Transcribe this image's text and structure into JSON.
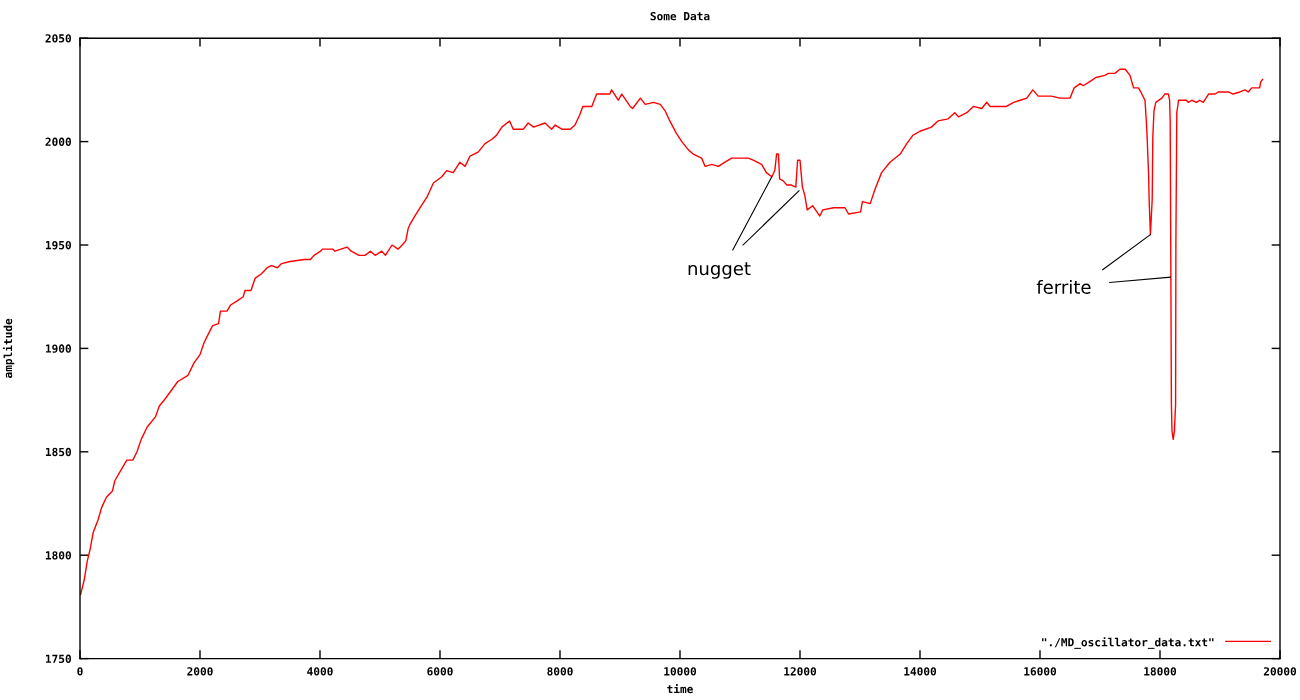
{
  "chart_data": {
    "type": "line",
    "title": "Some Data",
    "xlabel": "time",
    "ylabel": "amplitude",
    "xlim": [
      0,
      20000
    ],
    "xticks": [
      0,
      2000,
      4000,
      6000,
      8000,
      10000,
      12000,
      14000,
      16000,
      18000,
      20000
    ],
    "ylim": [
      1750,
      2050
    ],
    "yticks": [
      1750,
      1800,
      1850,
      1900,
      1950,
      2000,
      2050
    ],
    "legend": "bottom right",
    "annotations": [
      {
        "text": "nugget",
        "x": 11530,
        "y": 1983
      },
      {
        "text": "ferrite",
        "x": 17840,
        "y": 1955
      }
    ],
    "series": [
      {
        "name": "\"./MD_oscillator_data.txt\"",
        "color": "#ff0000",
        "x": [
          10,
          70,
          120,
          170,
          220,
          300,
          360,
          440,
          540,
          580,
          680,
          780,
          880,
          950,
          1020,
          1120,
          1260,
          1320,
          1430,
          1530,
          1630,
          1800,
          1900,
          2000,
          2070,
          2140,
          2210,
          2310,
          2340,
          2450,
          2510,
          2620,
          2720,
          2750,
          2850,
          2920,
          3020,
          3120,
          3190,
          3290,
          3360,
          3500,
          3740,
          3840,
          3900,
          4010,
          4040,
          4210,
          4250,
          4350,
          4450,
          4520,
          4650,
          4750,
          4840,
          4920,
          5030,
          5090,
          5200,
          5300,
          5370,
          5430,
          5470,
          5500,
          5580,
          5690,
          5780,
          5890,
          6030,
          6110,
          6220,
          6330,
          6420,
          6500,
          6640,
          6750,
          6860,
          6940,
          7030,
          7160,
          7220,
          7390,
          7470,
          7560,
          7750,
          7860,
          7920,
          8030,
          8170,
          8250,
          8330,
          8380,
          8530,
          8610,
          8830,
          8860,
          8970,
          9030,
          9170,
          9210,
          9340,
          9420,
          9560,
          9670,
          9750,
          9830,
          9940,
          10030,
          10140,
          10220,
          10360,
          10420,
          10530,
          10640,
          10690,
          10860,
          11140,
          11220,
          11360,
          11440,
          11530,
          11580,
          11610,
          11640,
          11660,
          11720,
          11780,
          11860,
          11930,
          11960,
          12000,
          12040,
          12080,
          12120,
          12210,
          12330,
          12380,
          12560,
          12750,
          12810,
          13010,
          13040,
          13170,
          13250,
          13360,
          13500,
          13670,
          13780,
          13880,
          14000,
          14190,
          14300,
          14470,
          14580,
          14640,
          14780,
          14890,
          15030,
          15110,
          15170,
          15440,
          15560,
          15670,
          15780,
          15880,
          15970,
          16190,
          16330,
          16500,
          16570,
          16670,
          16720,
          16830,
          16930,
          17080,
          17140,
          17250,
          17330,
          17420,
          17500,
          17560,
          17640,
          17680,
          17750,
          17780,
          17810,
          17820,
          17840,
          17870,
          17880,
          17900,
          17930,
          18030,
          18080,
          18140,
          18160,
          18170,
          18180,
          18190,
          18200,
          18220,
          18240,
          18260,
          18265,
          18280,
          18310,
          18440,
          18470,
          18530,
          18610,
          18660,
          18720,
          18810,
          18920,
          18970,
          19140,
          19220,
          19330,
          19420,
          19470,
          19530,
          19660,
          19680,
          19710
        ],
        "values": [
          1781,
          1788,
          1797,
          1803,
          1811,
          1817,
          1823,
          1828,
          1831,
          1836,
          1841,
          1846,
          1846,
          1850,
          1856,
          1862,
          1867,
          1872,
          1876,
          1880,
          1884,
          1887,
          1893,
          1897,
          1903,
          1907,
          1911,
          1912,
          1918,
          1918,
          1921,
          1923,
          1925,
          1928,
          1928,
          1934,
          1936,
          1939,
          1940,
          1939,
          1941,
          1942,
          1943,
          1943,
          1945,
          1947,
          1948,
          1948,
          1947,
          1948,
          1949,
          1947,
          1945,
          1945,
          1947,
          1945,
          1947,
          1945,
          1950,
          1948,
          1950,
          1952,
          1958,
          1960,
          1964,
          1969,
          1973,
          1980,
          1983,
          1986,
          1985,
          1990,
          1988,
          1993,
          1995,
          1999,
          2001,
          2003,
          2007,
          2010,
          2006,
          2006,
          2009,
          2007,
          2009,
          2006,
          2008,
          2006,
          2006,
          2008,
          2013,
          2017,
          2017,
          2023,
          2023,
          2025,
          2020,
          2023,
          2017,
          2016,
          2021,
          2018,
          2019,
          2018,
          2015,
          2010,
          2004,
          2000,
          1996,
          1994,
          1992,
          1988,
          1989,
          1988,
          1989,
          1992,
          1992,
          1991,
          1989,
          1985,
          1983,
          1986,
          1994,
          1994,
          1982,
          1981,
          1979,
          1979,
          1978,
          1991,
          1991,
          1978,
          1974,
          1967,
          1969,
          1964,
          1967,
          1968,
          1968,
          1965,
          1966,
          1971,
          1970,
          1977,
          1985,
          1990,
          1994,
          1999,
          2003,
          2005,
          2007,
          2010,
          2011,
          2014,
          2012,
          2014,
          2017,
          2016,
          2019,
          2017,
          2017,
          2019,
          2020,
          2021,
          2025,
          2022,
          2022,
          2021,
          2021,
          2026,
          2028,
          2027,
          2029,
          2031,
          2032,
          2033,
          2033,
          2035,
          2035,
          2032,
          2026,
          2026,
          2024,
          2020,
          2006,
          1984,
          1971,
          1955,
          1972,
          2002,
          2015,
          2019,
          2021,
          2023,
          2023,
          2020,
          2010,
          1943,
          1873,
          1860,
          1856,
          1860,
          1873,
          1952,
          2014,
          2020,
          2020,
          2019,
          2020,
          2019,
          2020,
          2019,
          2023,
          2023,
          2024,
          2024,
          2023,
          2024,
          2025,
          2024,
          2026,
          2026,
          2029,
          2030
        ]
      }
    ]
  }
}
